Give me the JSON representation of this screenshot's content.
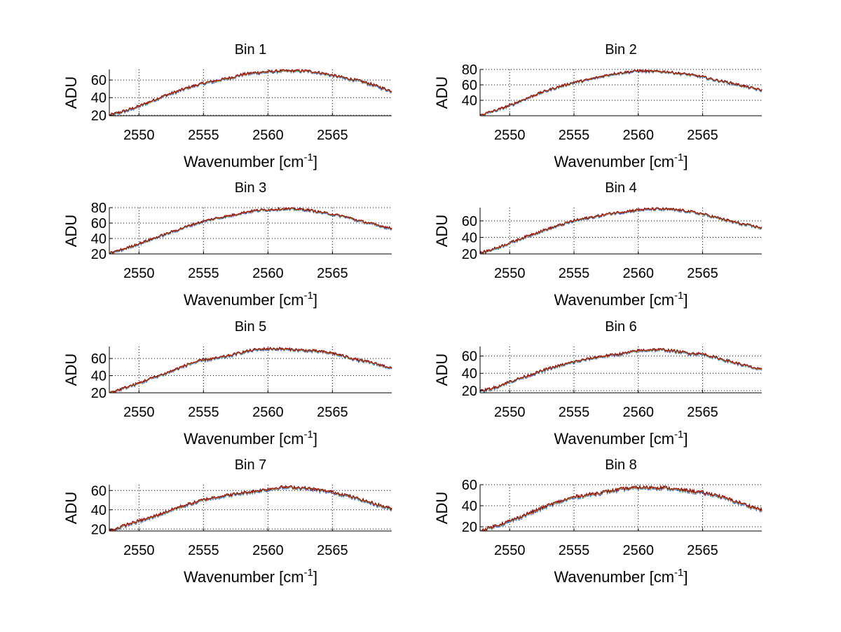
{
  "chart_data": {
    "type": "line",
    "layout": "4x2 subplots",
    "x": [
      2548,
      2549,
      2550,
      2551,
      2552,
      2553,
      2554,
      2555,
      2556,
      2557,
      2558,
      2559,
      2560,
      2561,
      2562,
      2563,
      2564,
      2565,
      2566,
      2567,
      2568,
      2569
    ],
    "xlim": [
      2547.7,
      2569.6
    ],
    "xticks": [
      2550,
      2555,
      2560,
      2565
    ],
    "xlabel": "Wavenumber [cm",
    "xlabel_sup": "-1",
    "xlabel_close": "]",
    "ylabel": "ADU",
    "grid": true,
    "series_colors": [
      "#0000ff",
      "#00bfbf",
      "#e0b000",
      "#ff4000",
      "#800000"
    ],
    "panels": [
      {
        "title": "Bin 1",
        "ylim": [
          19.5,
          72
        ],
        "yticks": [
          20,
          40,
          60
        ],
        "values": [
          21,
          25,
          30,
          36,
          42,
          47,
          52,
          56,
          59,
          62,
          66,
          68,
          69,
          70,
          70,
          70,
          68,
          65,
          62,
          59,
          55,
          50
        ]
      },
      {
        "title": "Bin 2",
        "ylim": [
          20,
          80
        ],
        "yticks": [
          40,
          60,
          80
        ],
        "values": [
          22,
          27,
          33,
          40,
          47,
          53,
          58,
          63,
          66,
          70,
          74,
          76,
          78,
          77,
          77,
          75,
          73,
          70,
          66,
          63,
          59,
          55
        ]
      },
      {
        "title": "Bin 3",
        "ylim": [
          20,
          80
        ],
        "yticks": [
          20,
          40,
          60,
          80
        ],
        "values": [
          22,
          27,
          33,
          39,
          45,
          51,
          57,
          62,
          66,
          69,
          73,
          76,
          77,
          78,
          78,
          77,
          74,
          71,
          68,
          63,
          59,
          55
        ]
      },
      {
        "title": "Bin 4",
        "ylim": [
          20,
          76
        ],
        "yticks": [
          20,
          40,
          60
        ],
        "values": [
          22,
          27,
          33,
          39,
          45,
          50,
          55,
          60,
          63,
          66,
          69,
          71,
          73,
          74,
          74,
          73,
          71,
          68,
          64,
          60,
          56,
          53
        ]
      },
      {
        "title": "Bin 5",
        "ylim": [
          20,
          74
        ],
        "yticks": [
          20,
          40,
          60
        ],
        "values": [
          21,
          26,
          31,
          37,
          42,
          48,
          54,
          58,
          60,
          63,
          67,
          70,
          71,
          71,
          70,
          69,
          68,
          66,
          62,
          58,
          55,
          51
        ]
      },
      {
        "title": "Bin 6",
        "ylim": [
          17.5,
          71
        ],
        "yticks": [
          20,
          40,
          60
        ],
        "values": [
          20,
          24,
          30,
          35,
          40,
          45,
          49,
          53,
          56,
          59,
          61,
          63,
          66,
          67,
          67,
          65,
          63,
          62,
          58,
          54,
          50,
          46
        ]
      },
      {
        "title": "Bin 7",
        "ylim": [
          18,
          66
        ],
        "yticks": [
          20,
          40,
          60
        ],
        "values": [
          19,
          24,
          28,
          32,
          37,
          42,
          46,
          50,
          53,
          55,
          57,
          59,
          61,
          63,
          63,
          62,
          60,
          58,
          55,
          51,
          47,
          43
        ]
      },
      {
        "title": "Bin 8",
        "ylim": [
          16,
          60
        ],
        "yticks": [
          20,
          40,
          60
        ],
        "values": [
          17,
          21,
          25,
          30,
          35,
          40,
          44,
          48,
          50,
          52,
          54,
          56,
          57,
          57,
          57,
          55,
          54,
          52,
          50,
          46,
          42,
          38
        ]
      }
    ]
  }
}
